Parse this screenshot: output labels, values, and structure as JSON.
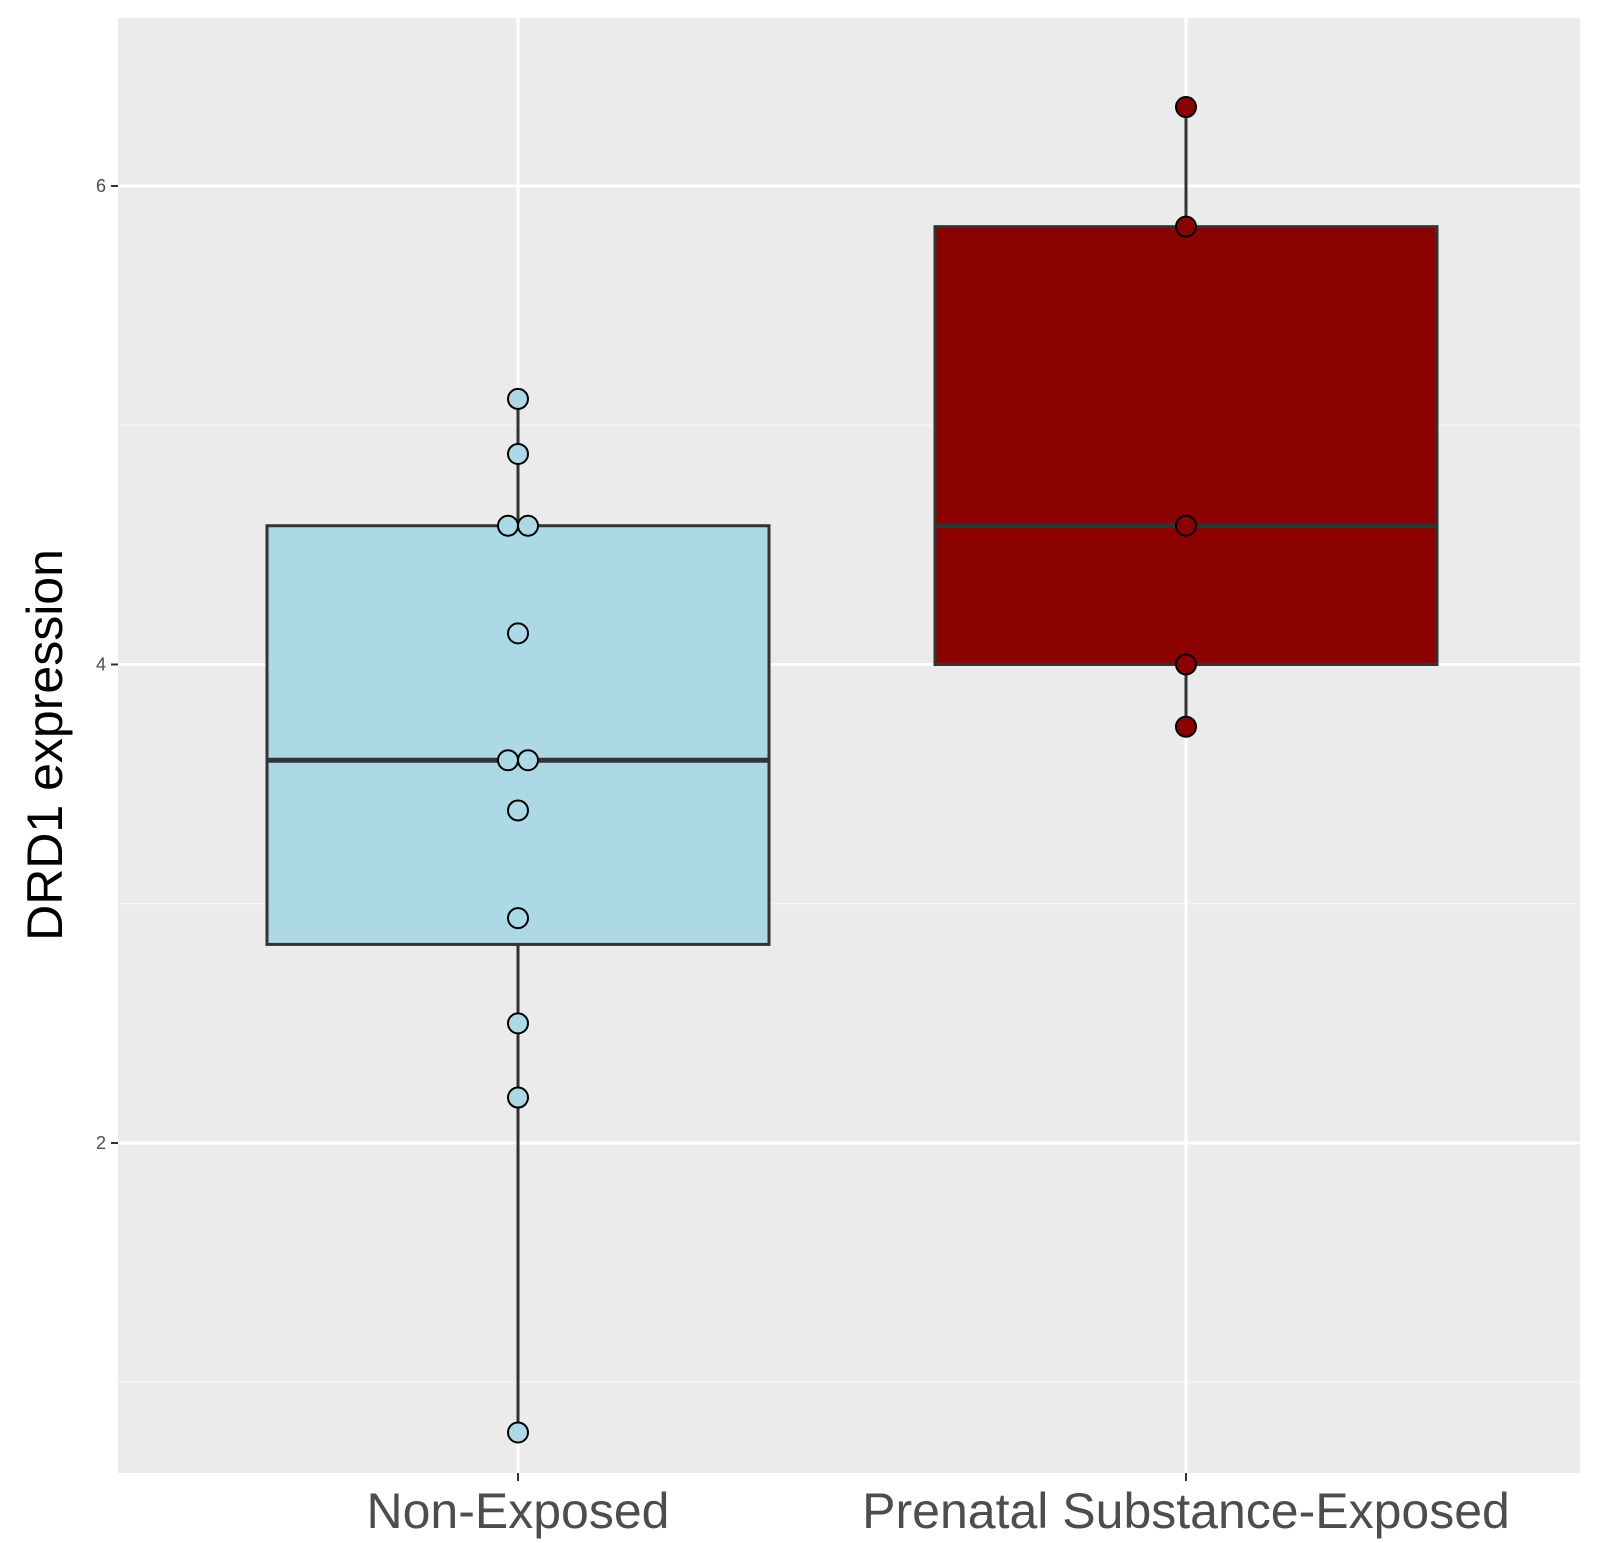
{
  "chart_data": {
    "type": "boxplot",
    "ylabel": "DRD1 expression",
    "xlabel": "",
    "ylim": [
      0.7,
      6.75
    ],
    "yticks": [
      2,
      4,
      6
    ],
    "ytick_labels": [
      "2",
      "4",
      "6"
    ],
    "grid": true,
    "categories": [
      "Non-Exposed",
      "Prenatal Substance-Exposed"
    ],
    "groups": [
      {
        "category": "Non-Exposed",
        "color": "#add8e6",
        "whisker_low": 0.79,
        "q1": 2.83,
        "median": 3.6,
        "q3": 4.58,
        "whisker_high": 5.11,
        "points": [
          {
            "x": 0,
            "y": 5.11
          },
          {
            "x": 0,
            "y": 4.88
          },
          {
            "x": -0.02,
            "y": 4.58
          },
          {
            "x": 0.02,
            "y": 4.58
          },
          {
            "x": 0,
            "y": 4.13
          },
          {
            "x": -0.02,
            "y": 3.6
          },
          {
            "x": 0.02,
            "y": 3.6
          },
          {
            "x": 0,
            "y": 3.39
          },
          {
            "x": 0,
            "y": 2.94
          },
          {
            "x": 0,
            "y": 2.5
          },
          {
            "x": 0,
            "y": 2.19
          },
          {
            "x": 0,
            "y": 0.79
          }
        ]
      },
      {
        "category": "Prenatal Substance-Exposed",
        "color": "#8b0000",
        "whisker_low": 3.74,
        "q1": 4.0,
        "median": 4.58,
        "q3": 5.83,
        "whisker_high": 6.33,
        "points": [
          {
            "x": 0,
            "y": 6.33
          },
          {
            "x": 0,
            "y": 5.83
          },
          {
            "x": 0,
            "y": 4.58
          },
          {
            "x": 0,
            "y": 4.0
          },
          {
            "x": 0,
            "y": 3.74
          }
        ]
      }
    ]
  },
  "colors": {
    "panel_background": "#ebebeb",
    "grid_major": "#ffffff",
    "grid_minor": "#f5f5f5",
    "box_outline": "#333333"
  }
}
